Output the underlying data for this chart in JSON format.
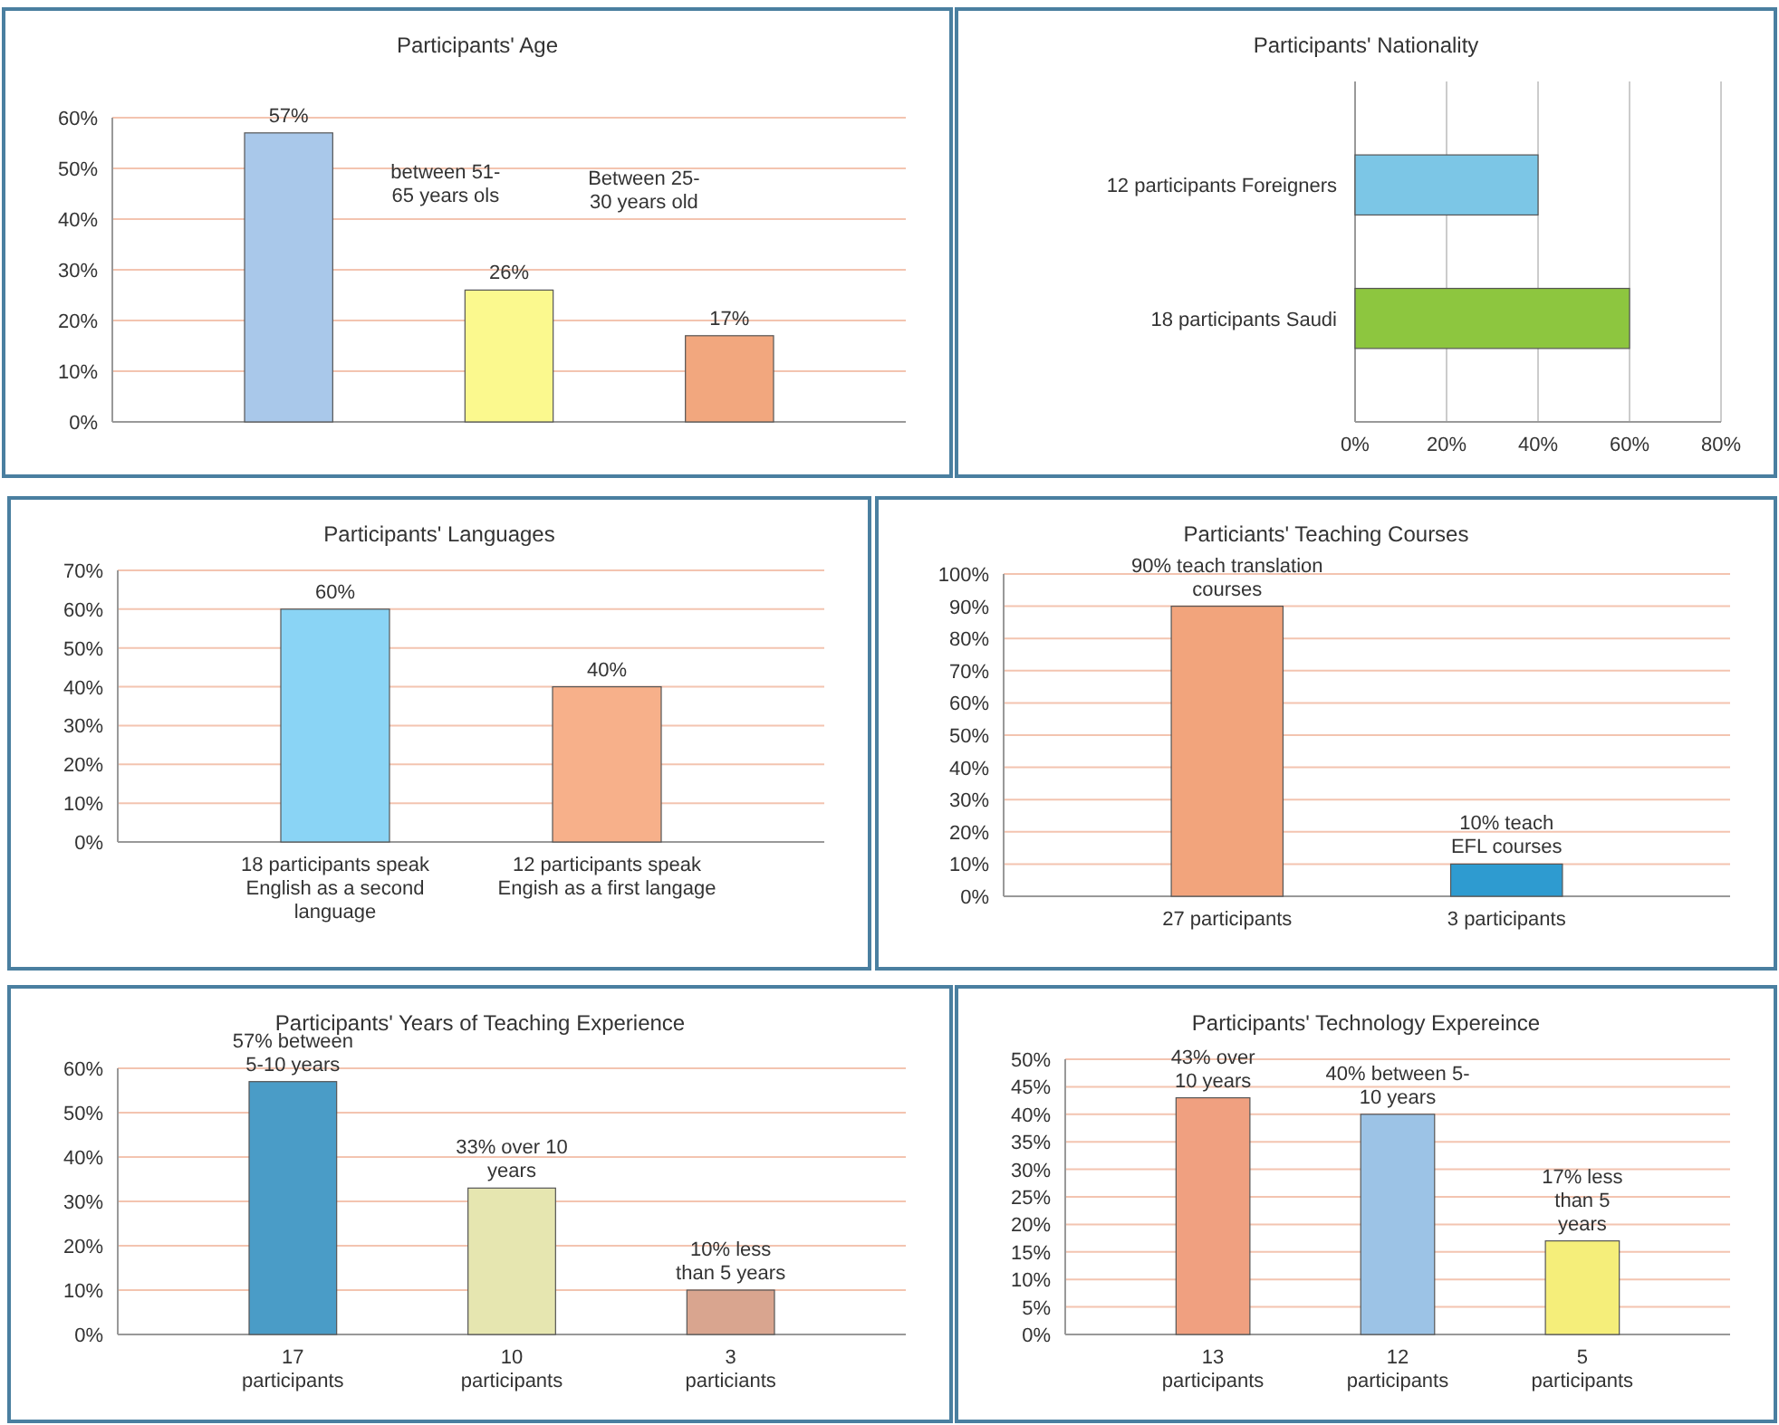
{
  "chart_data": [
    {
      "type": "bar",
      "title": "Participants' Age",
      "categories": [
        null,
        null,
        null
      ],
      "values": [
        57,
        26,
        17
      ],
      "colors": [
        "#a9c8ea",
        "#fbf98e",
        "#f2a77e"
      ],
      "value_labels": [
        "57%",
        "26%",
        "17%"
      ],
      "annotations": [
        "between 51-\n65 years ols",
        "Between 25-\n30 years old"
      ],
      "ylim": [
        0,
        60
      ],
      "yticks": [
        {
          "value": 0,
          "label": "0%"
        },
        {
          "value": 10,
          "label": "10%"
        },
        {
          "value": 20,
          "label": "20%"
        },
        {
          "value": 30,
          "label": "30%"
        },
        {
          "value": 40,
          "label": "40%"
        },
        {
          "value": 50,
          "label": "50%"
        },
        {
          "value": 60,
          "label": "60%"
        }
      ],
      "grid": "y"
    },
    {
      "type": "bar",
      "orientation": "horizontal",
      "title": "Participants' Nationality",
      "categories": [
        "12 participants Foreigners",
        "18 participants Saudi"
      ],
      "values": [
        40,
        60
      ],
      "colors": [
        "#7cc6e6",
        "#8dc63f"
      ],
      "xlim": [
        0,
        80
      ],
      "xticks": [
        {
          "value": 0,
          "label": "0%"
        },
        {
          "value": 20,
          "label": "20%"
        },
        {
          "value": 40,
          "label": "40%"
        },
        {
          "value": 60,
          "label": "60%"
        },
        {
          "value": 80,
          "label": "80%"
        }
      ],
      "grid": "x"
    },
    {
      "type": "bar",
      "title": "Participants' Languages",
      "categories": [
        "18 participants speak\nEnglish as a second\nlanguage",
        "12 participants speak\nEngish as a first langage"
      ],
      "values": [
        60,
        40
      ],
      "colors": [
        "#8ad4f5",
        "#f7b08a"
      ],
      "value_labels": [
        "60%",
        "40%"
      ],
      "ylim": [
        0,
        70
      ],
      "yticks": [
        {
          "value": 0,
          "label": "0%"
        },
        {
          "value": 10,
          "label": "10%"
        },
        {
          "value": 20,
          "label": "20%"
        },
        {
          "value": 30,
          "label": "30%"
        },
        {
          "value": 40,
          "label": "40%"
        },
        {
          "value": 50,
          "label": "50%"
        },
        {
          "value": 60,
          "label": "60%"
        },
        {
          "value": 70,
          "label": "70%"
        }
      ],
      "grid": "y"
    },
    {
      "type": "bar",
      "title": "Particiants' Teaching Courses",
      "categories": [
        "27 participants",
        "3 participants"
      ],
      "values": [
        90,
        10
      ],
      "colors": [
        "#f2a47c",
        "#2e9bd0"
      ],
      "value_labels": [
        "90% teach translation\ncourses",
        "10% teach\nEFL courses"
      ],
      "ylim": [
        0,
        100
      ],
      "yticks": [
        {
          "value": 0,
          "label": "0%"
        },
        {
          "value": 10,
          "label": "10%"
        },
        {
          "value": 20,
          "label": "20%"
        },
        {
          "value": 30,
          "label": "30%"
        },
        {
          "value": 40,
          "label": "40%"
        },
        {
          "value": 50,
          "label": "50%"
        },
        {
          "value": 60,
          "label": "60%"
        },
        {
          "value": 70,
          "label": "70%"
        },
        {
          "value": 80,
          "label": "80%"
        },
        {
          "value": 90,
          "label": "90%"
        },
        {
          "value": 100,
          "label": "100%"
        }
      ],
      "grid": "y"
    },
    {
      "type": "bar",
      "title": "Participants' Years of Teaching Experience",
      "categories": [
        "17\nparticipants",
        "10\nparticipants",
        "3\nparticiants"
      ],
      "values": [
        57,
        33,
        10
      ],
      "colors": [
        "#4a9cc7",
        "#e6e6b0",
        "#d9a58f"
      ],
      "value_labels": [
        "57% between\n5-10 years",
        "33% over 10\nyears",
        "10% less\nthan 5 years"
      ],
      "ylim": [
        0,
        60
      ],
      "yticks": [
        {
          "value": 0,
          "label": "0%"
        },
        {
          "value": 10,
          "label": "10%"
        },
        {
          "value": 20,
          "label": "20%"
        },
        {
          "value": 30,
          "label": "30%"
        },
        {
          "value": 40,
          "label": "40%"
        },
        {
          "value": 50,
          "label": "50%"
        },
        {
          "value": 60,
          "label": "60%"
        }
      ],
      "grid": "y"
    },
    {
      "type": "bar",
      "title": "Participants' Technology Expereince",
      "categories": [
        "13\nparticipants",
        "12\nparticipants",
        "5\nparticipants"
      ],
      "values": [
        43,
        40,
        17
      ],
      "colors": [
        "#f0a080",
        "#9cc3e6",
        "#f5ee7a"
      ],
      "value_labels": [
        "43% over\n10 years",
        "40% between 5-\n10 years",
        "17% less\nthan 5\nyears"
      ],
      "ylim": [
        0,
        50
      ],
      "yticks": [
        {
          "value": 0,
          "label": "0%"
        },
        {
          "value": 5,
          "label": "5%"
        },
        {
          "value": 10,
          "label": "10%"
        },
        {
          "value": 15,
          "label": "15%"
        },
        {
          "value": 20,
          "label": "20%"
        },
        {
          "value": 25,
          "label": "25%"
        },
        {
          "value": 30,
          "label": "30%"
        },
        {
          "value": 35,
          "label": "35%"
        },
        {
          "value": 40,
          "label": "40%"
        },
        {
          "value": 45,
          "label": "45%"
        },
        {
          "value": 50,
          "label": "50%"
        }
      ],
      "grid": "y"
    }
  ]
}
